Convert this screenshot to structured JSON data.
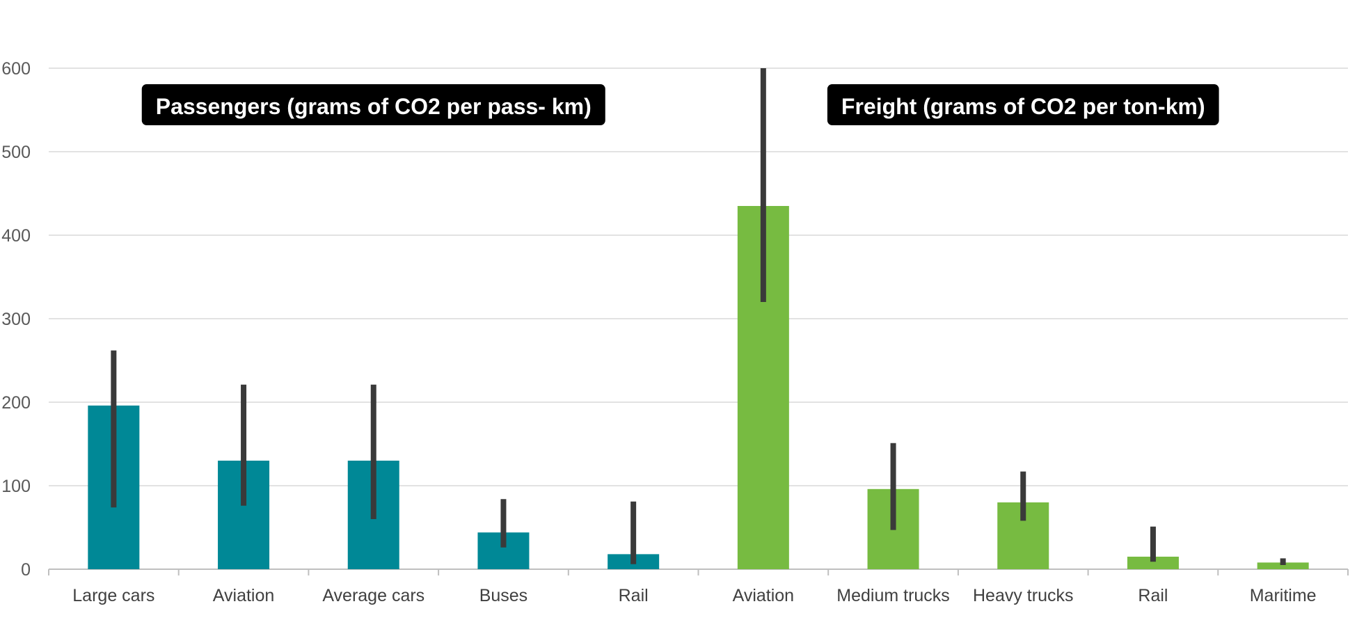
{
  "chart_data": {
    "type": "bar",
    "ylim": [
      0,
      600
    ],
    "yticks": [
      0,
      100,
      200,
      300,
      400,
      500,
      600
    ],
    "grid": true,
    "colors": {
      "passengers": "#008896",
      "freight": "#77bb41",
      "error_bar": "#3a3a3a",
      "grid": "#d9d9d9",
      "axis": "#bfbfbf"
    },
    "groups": [
      {
        "key": "passengers",
        "label": "Passengers (grams of CO2 per pass- km)"
      },
      {
        "key": "freight",
        "label": "Freight (grams of CO2 per ton-km)"
      }
    ],
    "bars": [
      {
        "category": "Large cars",
        "group": "passengers",
        "value": 196,
        "low": 74,
        "high": 262
      },
      {
        "category": "Aviation",
        "group": "passengers",
        "value": 130,
        "low": 76,
        "high": 221
      },
      {
        "category": "Average cars",
        "group": "passengers",
        "value": 130,
        "low": 60,
        "high": 221
      },
      {
        "category": "Buses",
        "group": "passengers",
        "value": 44,
        "low": 26,
        "high": 84
      },
      {
        "category": "Rail",
        "group": "passengers",
        "value": 18,
        "low": 6,
        "high": 81
      },
      {
        "category": "Aviation",
        "group": "freight",
        "value": 435,
        "low": 320,
        "high": 600
      },
      {
        "category": "Medium trucks",
        "group": "freight",
        "value": 96,
        "low": 47,
        "high": 151
      },
      {
        "category": "Heavy trucks",
        "group": "freight",
        "value": 80,
        "low": 58,
        "high": 117
      },
      {
        "category": "Rail",
        "group": "freight",
        "value": 15,
        "low": 9,
        "high": 51
      },
      {
        "category": "Maritime",
        "group": "freight",
        "value": 8,
        "low": 5,
        "high": 13
      }
    ]
  }
}
